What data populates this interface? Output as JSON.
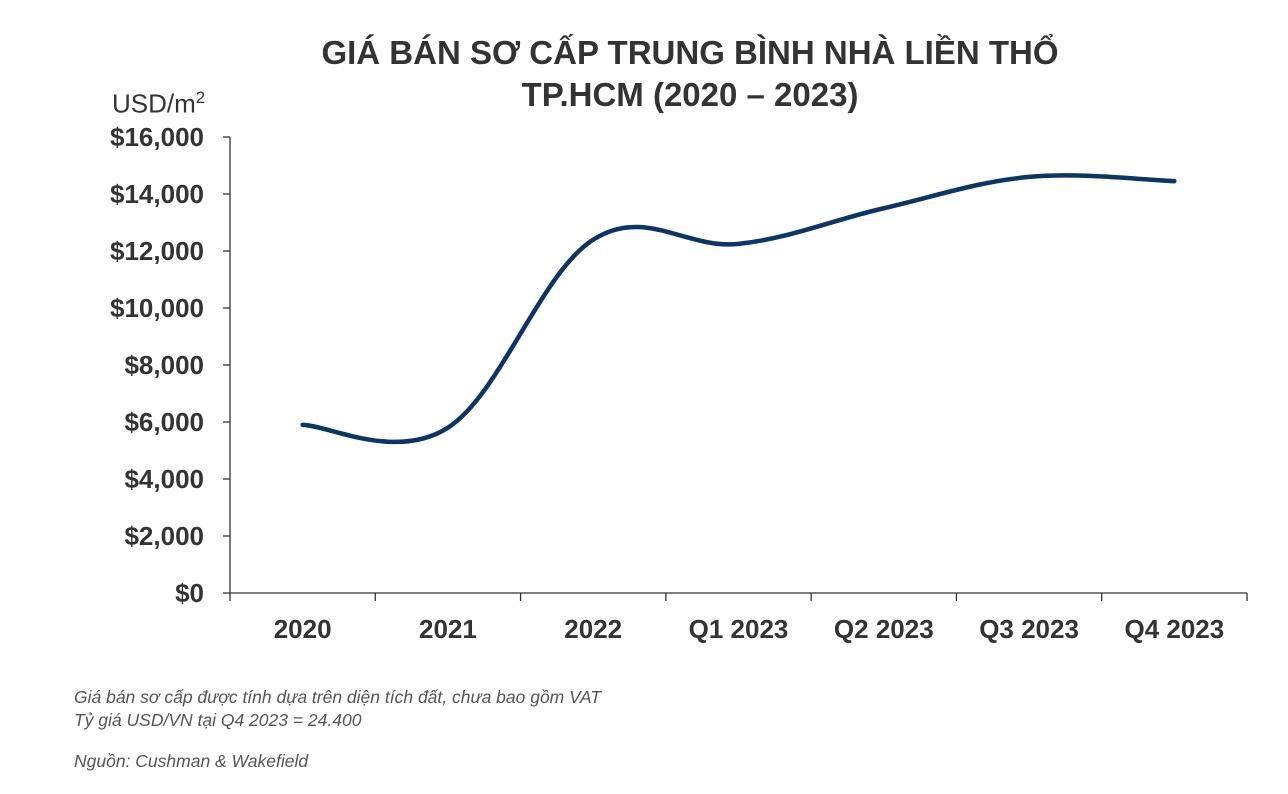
{
  "chart_data": {
    "type": "line",
    "title_line1": "GIÁ BÁN SƠ CẤP TRUNG BÌNH NHÀ LIỀN THỔ",
    "title_line2": "TP.HCM (2020 – 2023)",
    "unit_prefix": "USD/m",
    "unit_sup": "2",
    "categories": [
      "2020",
      "2021",
      "2022",
      "Q1 2023",
      "Q2 2023",
      "Q3 2023",
      "Q4 2023"
    ],
    "values": [
      5900,
      5800,
      12400,
      12250,
      13500,
      14600,
      14450
    ],
    "ylim": [
      0,
      16000
    ],
    "yticks": [
      0,
      2000,
      4000,
      6000,
      8000,
      10000,
      12000,
      14000,
      16000
    ],
    "ytick_labels": [
      "$0",
      "$2,000",
      "$4,000",
      "$6,000",
      "$8,000",
      "$10,000",
      "$12,000",
      "$14,000",
      "$16,000"
    ],
    "line_color": "#0b3564",
    "grid": false,
    "legend": "none"
  },
  "notes": {
    "line1": "Giá bán sơ cấp được tính dựa trên diện tích đất, chưa bao gồm VAT",
    "line2": "Tỷ giá USD/VN tại Q4 2023 = 24.400",
    "source": "Nguồn: Cushman & Wakefield"
  }
}
